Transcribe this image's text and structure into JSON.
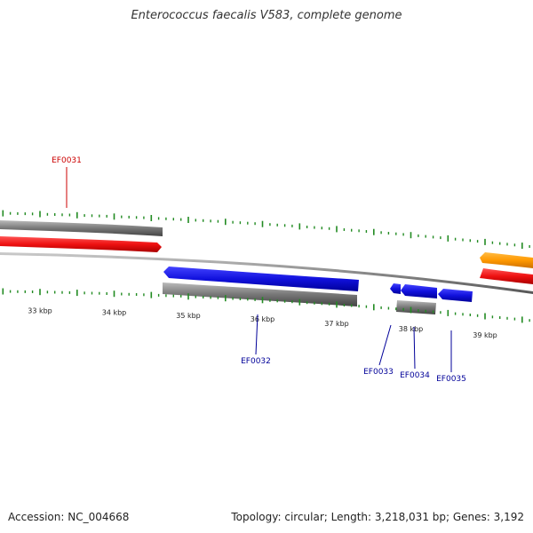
{
  "title": "Enterococcus faecalis V583, complete genome",
  "footer": {
    "accession": "Accession: NC_004668",
    "summary": "Topology: circular; Length: 3,218,031 bp; Genes: 3,192"
  },
  "colors": {
    "red_gene": "#ee1111",
    "blue_gene": "#1111dd",
    "gray_track": "#777777",
    "orange_gene": "#ff9900",
    "tick": "#228b22",
    "label_red": "#cc0000",
    "label_blue": "#000099"
  },
  "kbp_ticks": [
    {
      "label": "33 kbp",
      "kbp": 33
    },
    {
      "label": "34 kbp",
      "kbp": 34
    },
    {
      "label": "35 kbp",
      "kbp": 35
    },
    {
      "label": "36 kbp",
      "kbp": 36
    },
    {
      "label": "37 kbp",
      "kbp": 37
    },
    {
      "label": "38 kbp",
      "kbp": 38
    },
    {
      "label": "39 kbp",
      "kbp": 39
    }
  ],
  "gene_labels": [
    {
      "name": "EF0031",
      "strand": "forward"
    },
    {
      "name": "EF0032",
      "strand": "reverse"
    },
    {
      "name": "EF0033",
      "strand": "reverse"
    },
    {
      "name": "EF0034",
      "strand": "reverse"
    },
    {
      "name": "EF0035",
      "strand": "reverse"
    }
  ]
}
